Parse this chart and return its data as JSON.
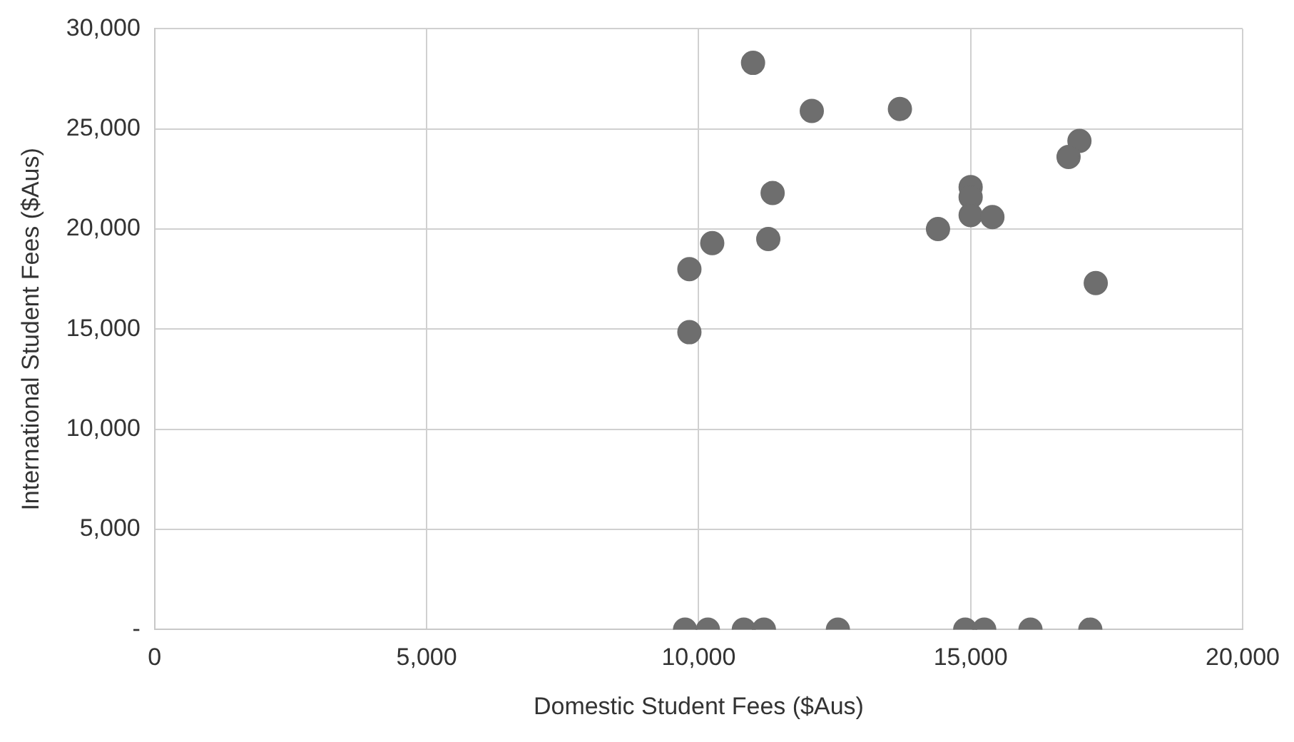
{
  "chart_data": {
    "type": "scatter",
    "xlabel": "Domestic Student Fees ($Aus)",
    "ylabel": "International Student Fees ($Aus)",
    "x": [
      11000,
      12080,
      13700,
      17000,
      16800,
      11360,
      15000,
      15000,
      15000,
      15400,
      14400,
      11280,
      10250,
      9830,
      17300,
      9830,
      9750,
      10170,
      10830,
      11200,
      12560,
      14900,
      15250,
      16100,
      17200
    ],
    "series": [
      {
        "color": "#6e6e6e",
        "values": [
          28300,
          25900,
          26000,
          24400,
          23600,
          21800,
          22100,
          21600,
          20700,
          20600,
          20000,
          19500,
          19300,
          18000,
          17300,
          14850,
          0,
          0,
          0,
          0,
          0,
          0,
          0,
          0,
          0
        ]
      }
    ],
    "xlim": [
      0,
      20000
    ],
    "xticks": [
      {
        "value": 0,
        "label": "0"
      },
      {
        "value": 5000,
        "label": "5,000"
      },
      {
        "value": 10000,
        "label": "10,000"
      },
      {
        "value": 15000,
        "label": "15,000"
      },
      {
        "value": 20000,
        "label": "20,000"
      }
    ],
    "ylim": [
      0,
      30000
    ],
    "yticks": [
      {
        "value": 0,
        "label": "-"
      },
      {
        "value": 5000,
        "label": "5,000"
      },
      {
        "value": 10000,
        "label": "10,000"
      },
      {
        "value": 15000,
        "label": "15,000"
      },
      {
        "value": 20000,
        "label": "20,000"
      },
      {
        "value": 25000,
        "label": "25,000"
      },
      {
        "value": 30000,
        "label": "30,000"
      }
    ],
    "grid": true,
    "marker": "circle"
  }
}
